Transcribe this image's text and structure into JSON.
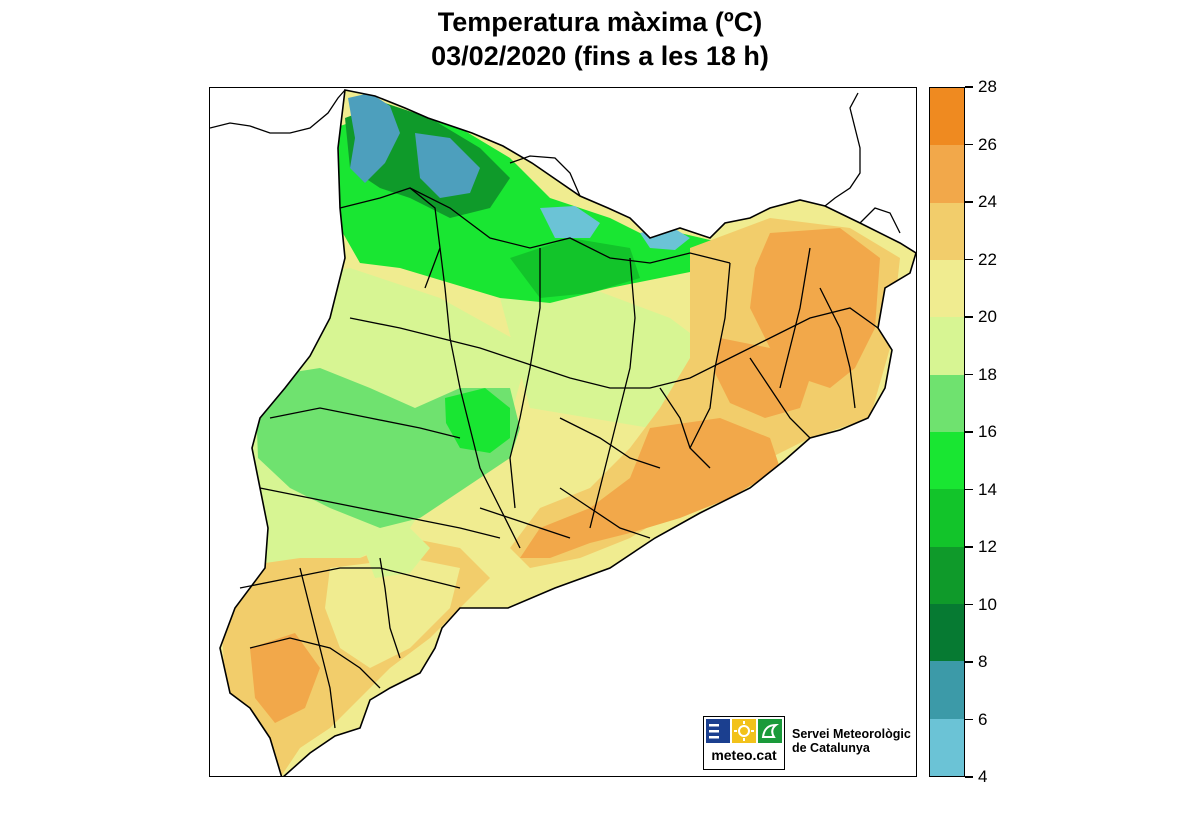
{
  "title": {
    "line1": "Temperatura màxima (ºC)",
    "line2": "03/02/2020 (fins a les 18 h)"
  },
  "colorbar": {
    "ticks": [
      "28",
      "26",
      "24",
      "22",
      "20",
      "18",
      "16",
      "14",
      "12",
      "10",
      "8",
      "6",
      "4"
    ],
    "colors_top_to_bottom": [
      "#ef8a20",
      "#f2a84a",
      "#f2cd6b",
      "#f0ec90",
      "#d7f593",
      "#6fe26f",
      "#19e632",
      "#12c42a",
      "#0f9a2a",
      "#067a32",
      "#3c9aa8",
      "#6bc3d6",
      "#8fdcdc"
    ]
  },
  "map": {
    "region": "Catalunya",
    "palette": {
      "cold_blue": "#4d9fbd",
      "dark_green": "#0f9a2a",
      "green": "#19e632",
      "light_green": "#6fe26f",
      "pale_green": "#d7f593",
      "yellow": "#f0ec90",
      "light_orange": "#f2cd6b",
      "orange": "#f2a84a",
      "border": "#000000"
    }
  },
  "logo": {
    "text": "meteo.cat",
    "colors": [
      "#1b3f8f",
      "#f2c21b",
      "#1a9a3a"
    ]
  },
  "agency": {
    "line1": "Servei Meteorològic",
    "line2": "de Catalunya"
  }
}
